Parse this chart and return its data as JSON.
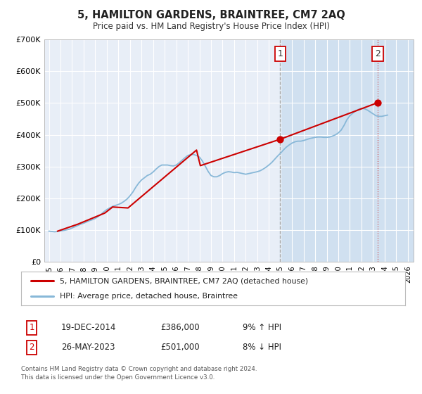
{
  "title": "5, HAMILTON GARDENS, BRAINTREE, CM7 2AQ",
  "subtitle": "Price paid vs. HM Land Registry's House Price Index (HPI)",
  "ylim": [
    0,
    700000
  ],
  "yticks": [
    0,
    100000,
    200000,
    300000,
    400000,
    500000,
    600000,
    700000
  ],
  "ytick_labels": [
    "£0",
    "£100K",
    "£200K",
    "£300K",
    "£400K",
    "£500K",
    "£600K",
    "£700K"
  ],
  "xlim_start": 1994.6,
  "xlim_end": 2026.5,
  "xticks": [
    1995,
    1996,
    1997,
    1998,
    1999,
    2000,
    2001,
    2002,
    2003,
    2004,
    2005,
    2006,
    2007,
    2008,
    2009,
    2010,
    2011,
    2012,
    2013,
    2014,
    2015,
    2016,
    2017,
    2018,
    2019,
    2020,
    2021,
    2022,
    2023,
    2024,
    2025,
    2026
  ],
  "bg_color": "#e8eef7",
  "fig_bg_color": "#ffffff",
  "grid_color": "#ffffff",
  "shade_start": 2014.97,
  "shade_end": 2026.5,
  "shade_color": "#d0e0f0",
  "sale1_x": 2014.97,
  "sale1_y": 386000,
  "sale1_label": "1",
  "sale1_date": "19-DEC-2014",
  "sale1_price": "£386,000",
  "sale1_hpi": "9% ↑ HPI",
  "sale2_x": 2023.4,
  "sale2_y": 501000,
  "sale2_label": "2",
  "sale2_date": "26-MAY-2023",
  "sale2_price": "£501,000",
  "sale2_hpi": "8% ↓ HPI",
  "vline1_x": 2014.97,
  "vline2_x": 2023.4,
  "red_line_color": "#cc0000",
  "blue_line_color": "#88b8d8",
  "marker_color": "#cc0000",
  "legend_label_red": "5, HAMILTON GARDENS, BRAINTREE, CM7 2AQ (detached house)",
  "legend_label_blue": "HPI: Average price, detached house, Braintree",
  "footnote": "Contains HM Land Registry data © Crown copyright and database right 2024.\nThis data is licensed under the Open Government Licence v3.0.",
  "hpi_data_x": [
    1995.0,
    1995.25,
    1995.5,
    1995.75,
    1996.0,
    1996.25,
    1996.5,
    1996.75,
    1997.0,
    1997.25,
    1997.5,
    1997.75,
    1998.0,
    1998.25,
    1998.5,
    1998.75,
    1999.0,
    1999.25,
    1999.5,
    1999.75,
    2000.0,
    2000.25,
    2000.5,
    2000.75,
    2001.0,
    2001.25,
    2001.5,
    2001.75,
    2002.0,
    2002.25,
    2002.5,
    2002.75,
    2003.0,
    2003.25,
    2003.5,
    2003.75,
    2004.0,
    2004.25,
    2004.5,
    2004.75,
    2005.0,
    2005.25,
    2005.5,
    2005.75,
    2006.0,
    2006.25,
    2006.5,
    2006.75,
    2007.0,
    2007.25,
    2007.5,
    2007.75,
    2008.0,
    2008.25,
    2008.5,
    2008.75,
    2009.0,
    2009.25,
    2009.5,
    2009.75,
    2010.0,
    2010.25,
    2010.5,
    2010.75,
    2011.0,
    2011.25,
    2011.5,
    2011.75,
    2012.0,
    2012.25,
    2012.5,
    2012.75,
    2013.0,
    2013.25,
    2013.5,
    2013.75,
    2014.0,
    2014.25,
    2014.5,
    2014.75,
    2015.0,
    2015.25,
    2015.5,
    2015.75,
    2016.0,
    2016.25,
    2016.5,
    2016.75,
    2017.0,
    2017.25,
    2017.5,
    2017.75,
    2018.0,
    2018.25,
    2018.5,
    2018.75,
    2019.0,
    2019.25,
    2019.5,
    2019.75,
    2020.0,
    2020.25,
    2020.5,
    2020.75,
    2021.0,
    2021.25,
    2021.5,
    2021.75,
    2022.0,
    2022.25,
    2022.5,
    2022.75,
    2023.0,
    2023.25,
    2023.5,
    2023.75,
    2024.0,
    2024.25
  ],
  "hpi_data_y": [
    97000,
    96000,
    95000,
    96000,
    98000,
    99000,
    101000,
    103000,
    107000,
    111000,
    115000,
    119000,
    122000,
    126000,
    130000,
    133000,
    137000,
    143000,
    150000,
    158000,
    165000,
    170000,
    175000,
    178000,
    181000,
    185000,
    191000,
    198000,
    208000,
    220000,
    235000,
    248000,
    258000,
    265000,
    272000,
    276000,
    283000,
    292000,
    300000,
    305000,
    305000,
    305000,
    303000,
    302000,
    305000,
    312000,
    320000,
    328000,
    335000,
    338000,
    338000,
    335000,
    330000,
    318000,
    302000,
    285000,
    272000,
    268000,
    268000,
    272000,
    278000,
    282000,
    284000,
    283000,
    281000,
    282000,
    280000,
    278000,
    276000,
    278000,
    280000,
    282000,
    284000,
    287000,
    292000,
    298000,
    305000,
    313000,
    323000,
    333000,
    342000,
    352000,
    361000,
    368000,
    374000,
    378000,
    380000,
    380000,
    382000,
    385000,
    388000,
    390000,
    392000,
    393000,
    393000,
    392000,
    392000,
    393000,
    396000,
    400000,
    406000,
    415000,
    430000,
    448000,
    460000,
    468000,
    475000,
    480000,
    483000,
    482000,
    478000,
    472000,
    466000,
    460000,
    458000,
    458000,
    460000,
    462000
  ],
  "price_paid_x": [
    1995.75,
    1997.5,
    1999.83,
    2000.5,
    2001.83,
    2007.75,
    2008.08,
    2014.97,
    2023.4
  ],
  "price_paid_y": [
    97000,
    119000,
    154000,
    173000,
    170000,
    352000,
    303000,
    386000,
    501000
  ]
}
